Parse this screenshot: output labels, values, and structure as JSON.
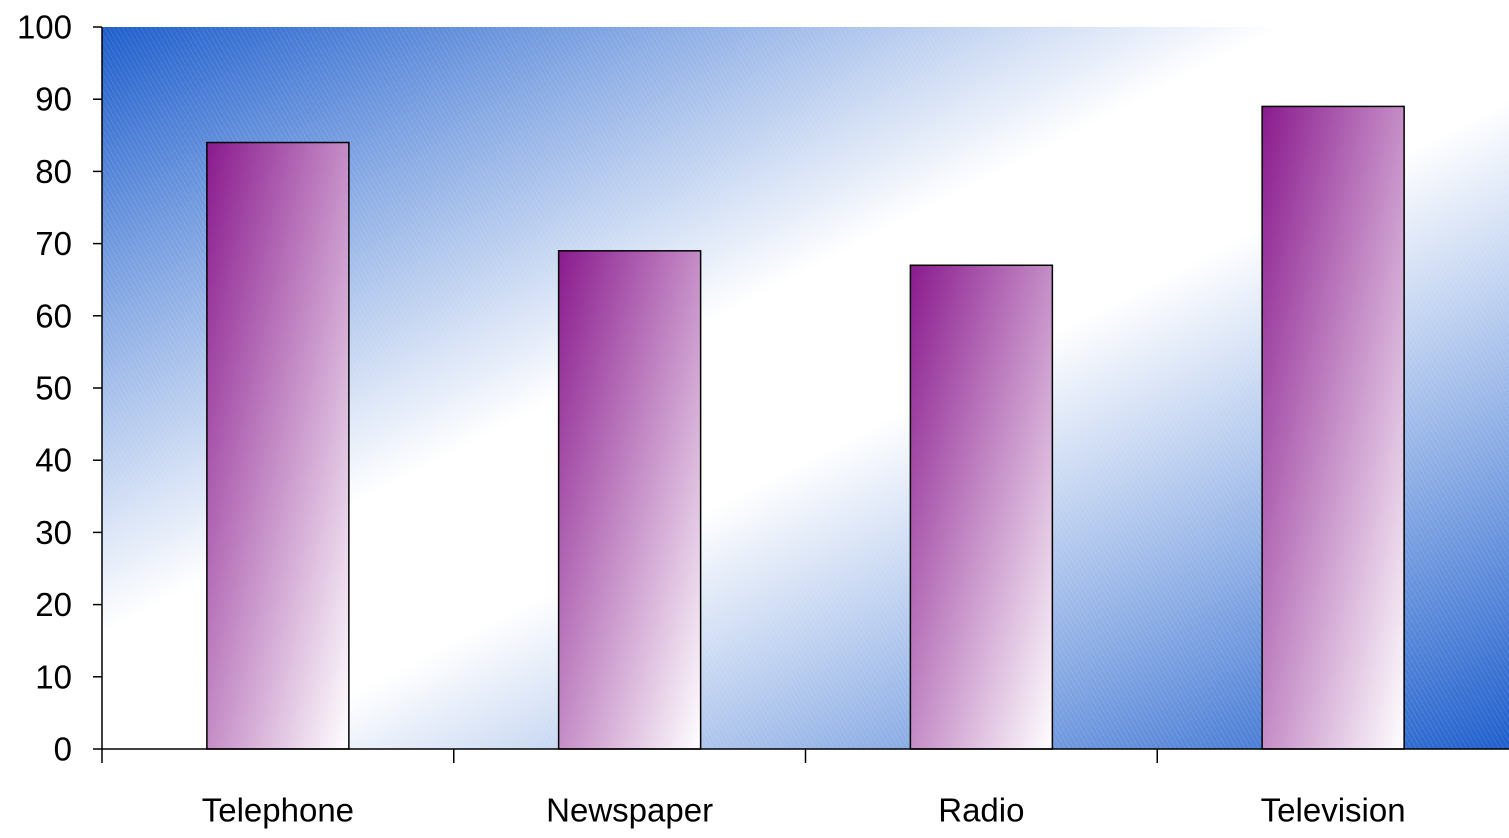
{
  "chart_data": {
    "type": "bar",
    "categories": [
      "Telephone",
      "Newspaper",
      "Radio",
      "Television"
    ],
    "values": [
      84,
      69,
      67,
      89
    ],
    "title": "",
    "xlabel": "",
    "ylabel": "",
    "ylim": [
      0,
      100
    ],
    "yticks": [
      0,
      10,
      20,
      30,
      40,
      50,
      60,
      70,
      80,
      90,
      100
    ],
    "grid": false,
    "legend": "none",
    "colors": {
      "background_dark": "#1f5fcc",
      "background_light": "#ffffff",
      "bar_dark": "#8a1a8e",
      "bar_light": "#ffffff",
      "bar_outline": "#000000",
      "axis": "#000000"
    }
  }
}
